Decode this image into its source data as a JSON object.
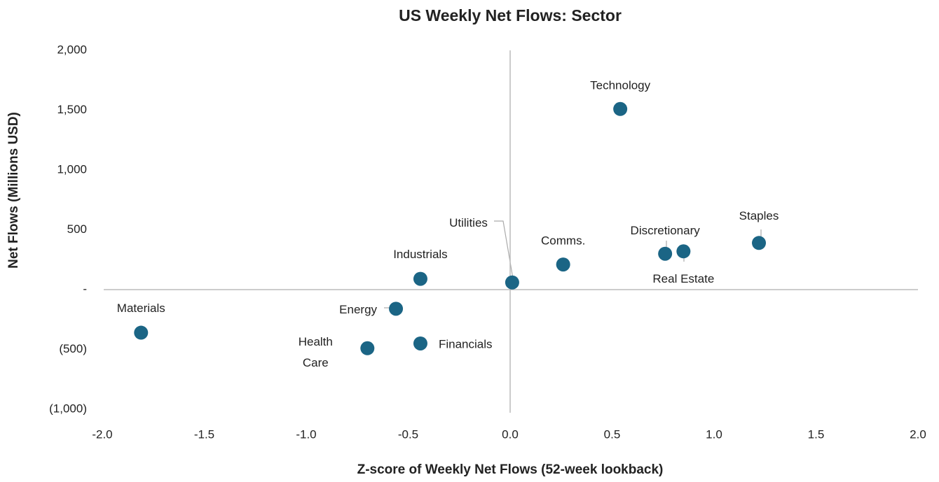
{
  "chart_data": {
    "type": "scatter",
    "title": "US Weekly Net Flows: Sector",
    "x_label": "Z-score of Weekly Net Flows (52-week lookback)",
    "y_label": "Net Flows (Millions USD)",
    "categories": [
      "Technology",
      "Staples",
      "Real Estate",
      "Discretionary",
      "Comms.",
      "Utilities",
      "Industrials",
      "Energy",
      "Financials",
      "Health Care",
      "Materials"
    ],
    "x": [
      0.54,
      1.22,
      0.85,
      0.76,
      0.26,
      0.01,
      -0.44,
      -0.56,
      -0.44,
      -0.7,
      -1.81
    ],
    "values": [
      1510,
      390,
      320,
      300,
      210,
      60,
      90,
      -160,
      -450,
      -490,
      -360
    ],
    "color": "#1b6585",
    "xlim": [
      -2.0,
      2.0
    ],
    "ylim": [
      -1000,
      2000
    ],
    "xticks": [
      {
        "value": -2.0,
        "label": "-2.0"
      },
      -1.5,
      {
        "value": -1.0,
        "label": "-1.0"
      },
      -0.5,
      {
        "value": 0.0,
        "label": "0.0"
      },
      0.5,
      {
        "value": 1.0,
        "label": "1.0"
      },
      1.5,
      {
        "value": 2.0,
        "label": "2.0"
      }
    ],
    "yticks": [
      {
        "value": 2000,
        "label": "2,000"
      },
      {
        "value": 1500,
        "label": "1,500"
      },
      {
        "value": 1000,
        "label": "1,000"
      },
      500,
      {
        "value": 0,
        "label": "-"
      },
      {
        "value": -500,
        "label": "(500)"
      },
      {
        "value": -1000,
        "label": "(1,000)"
      }
    ]
  }
}
